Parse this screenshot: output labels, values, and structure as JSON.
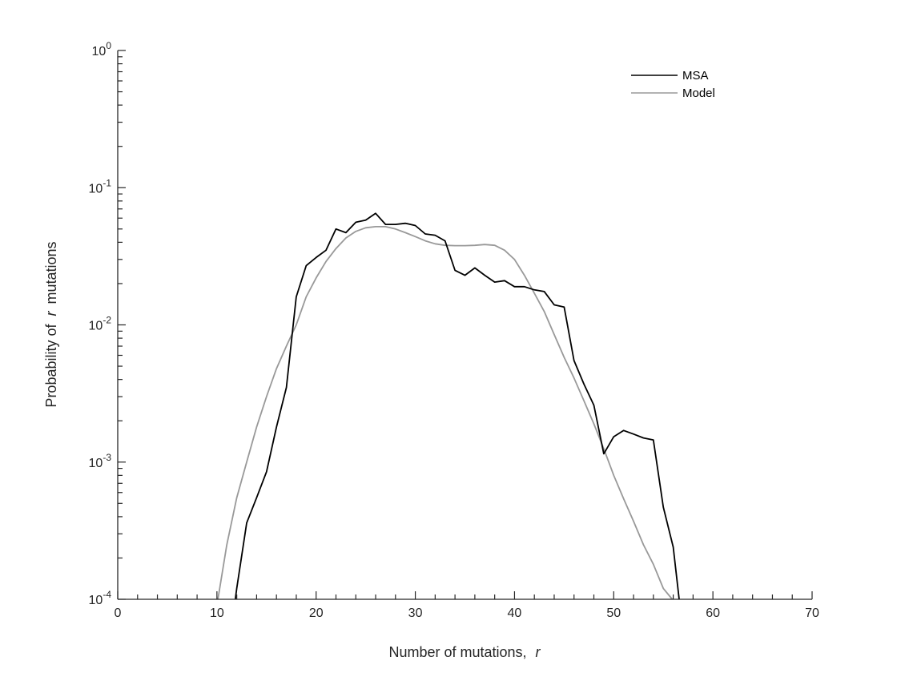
{
  "chart_data": {
    "type": "line",
    "title": "",
    "xlabel": "Number of mutations,",
    "xlabel_var": "r",
    "ylabel_pre": "Probability of",
    "ylabel_var": "r",
    "ylabel_post": "mutations",
    "xlim": [
      0,
      70
    ],
    "ylim": [
      0.0001,
      1
    ],
    "yscale": "log",
    "grid": false,
    "legend_position": "top-right",
    "x_ticks": [
      "0",
      "10",
      "20",
      "30",
      "40",
      "50",
      "60",
      "70"
    ],
    "y_ticks": [
      {
        "base": "10",
        "exp": "-4"
      },
      {
        "base": "10",
        "exp": "-3"
      },
      {
        "base": "10",
        "exp": "-2"
      },
      {
        "base": "10",
        "exp": "-1"
      },
      {
        "base": "10",
        "exp": "0"
      }
    ],
    "series": [
      {
        "name": "MSA",
        "color": "#000000",
        "x": [
          11.85,
          12,
          13,
          14,
          15,
          16,
          17,
          18,
          19,
          20,
          21,
          22,
          23,
          24,
          25,
          26,
          27,
          28,
          29,
          30,
          31,
          32,
          33,
          34,
          35,
          36,
          37,
          38,
          39,
          40,
          41,
          42,
          43,
          44,
          45,
          46,
          47,
          48,
          49,
          50,
          51,
          52,
          53,
          54,
          55,
          56,
          56.6
        ],
        "y": [
          0.0001,
          0.00012,
          0.00036,
          0.00055,
          0.00085,
          0.0018,
          0.0035,
          0.016,
          0.027,
          0.031,
          0.035,
          0.05,
          0.047,
          0.056,
          0.058,
          0.065,
          0.054,
          0.054,
          0.055,
          0.053,
          0.046,
          0.045,
          0.041,
          0.025,
          0.023,
          0.026,
          0.023,
          0.0205,
          0.021,
          0.019,
          0.019,
          0.018,
          0.0175,
          0.014,
          0.0135,
          0.0055,
          0.0037,
          0.0026,
          0.00115,
          0.00153,
          0.0017,
          0.0016,
          0.0015,
          0.00145,
          0.00047,
          0.00024,
          0.0001
        ]
      },
      {
        "name": "Model",
        "color": "#999999",
        "x": [
          10.1,
          11,
          12,
          13,
          14,
          15,
          16,
          17,
          18,
          19,
          20,
          21,
          22,
          23,
          24,
          25,
          26,
          27,
          28,
          29,
          30,
          31,
          32,
          33,
          34,
          35,
          36,
          37,
          38,
          39,
          40,
          41,
          42,
          43,
          44,
          45,
          46,
          47,
          48,
          49,
          50,
          51,
          52,
          53,
          54,
          55,
          55.9
        ],
        "y": [
          0.0001,
          0.00025,
          0.00055,
          0.001,
          0.0018,
          0.003,
          0.0048,
          0.007,
          0.01,
          0.016,
          0.022,
          0.029,
          0.036,
          0.043,
          0.048,
          0.051,
          0.052,
          0.052,
          0.05,
          0.047,
          0.044,
          0.041,
          0.039,
          0.038,
          0.0378,
          0.0378,
          0.038,
          0.0385,
          0.038,
          0.035,
          0.03,
          0.023,
          0.017,
          0.0125,
          0.0085,
          0.0058,
          0.0041,
          0.0028,
          0.0019,
          0.00125,
          0.0008,
          0.00054,
          0.00037,
          0.00025,
          0.00018,
          0.00012,
          0.0001
        ]
      }
    ]
  }
}
